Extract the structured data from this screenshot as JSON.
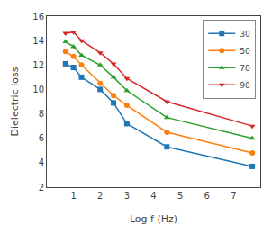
{
  "chart_data": {
    "type": "line",
    "x_label": "Log f (Hz)",
    "y_label": "Dielectric loss",
    "x": [
      0.7,
      1.0,
      1.3,
      2.0,
      2.5,
      3.0,
      4.5,
      7.7
    ],
    "series": [
      {
        "name": "30",
        "marker": "square",
        "values": [
          12.1,
          11.8,
          11.0,
          10.0,
          8.9,
          7.2,
          5.3,
          3.7
        ]
      },
      {
        "name": "50",
        "marker": "circle",
        "values": [
          13.1,
          12.7,
          12.0,
          10.5,
          9.5,
          8.7,
          6.5,
          4.8
        ]
      },
      {
        "name": "70",
        "marker": "triangle-up",
        "values": [
          13.9,
          13.5,
          12.8,
          12.0,
          11.0,
          9.9,
          7.7,
          6.0
        ]
      },
      {
        "name": "90",
        "marker": "triangle-down",
        "values": [
          14.6,
          14.7,
          14.0,
          13.0,
          12.1,
          10.9,
          9.0,
          7.0
        ]
      }
    ],
    "xlim": [
      0,
      8
    ],
    "ylim": [
      2,
      16
    ],
    "xticks": [
      1,
      2,
      3,
      4,
      5,
      6,
      7
    ],
    "yticks": [
      2,
      4,
      6,
      8,
      10,
      12,
      14,
      16
    ],
    "grid": false,
    "legend": "upper right"
  }
}
